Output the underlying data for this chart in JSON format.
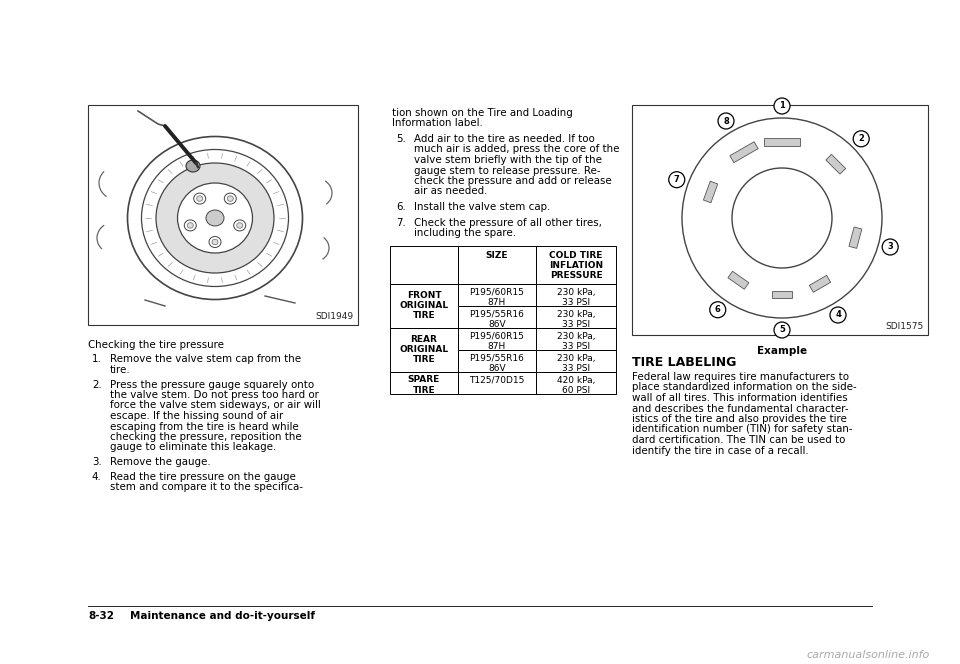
{
  "bg_color": "#ffffff",
  "page_width": 9.6,
  "page_height": 6.64,
  "left_image_label": "SDI1949",
  "right_image_label": "SDI1575",
  "right_image_caption": "Example",
  "left_text_title": "Checking the tire pressure",
  "center_text_top_line1": "tion shown on the Tire and Loading",
  "center_text_top_line2": "Information label.",
  "table_headers": [
    "",
    "SIZE",
    "COLD TIRE\nINFLATION\nPRESSURE"
  ],
  "table_col1": [
    "FRONT\nORIGINAL\nTIRE",
    "",
    "REAR\nORIGINAL\nTIRE",
    "",
    "SPARE\nTIRE"
  ],
  "table_col2": [
    "P195/60R15\n87H",
    "P195/55R16\n86V",
    "P195/60R15\n87H",
    "P195/55R16\n86V",
    "T125/70D15"
  ],
  "table_col3": [
    "230 kPa,\n33 PSI",
    "230 kPa,\n33 PSI",
    "230 kPa,\n33 PSI",
    "230 kPa,\n33 PSI",
    "420 kPa,\n60 PSI"
  ],
  "right_title": "TIRE LABELING",
  "right_para_lines": [
    "Federal law requires tire manufacturers to",
    "place standardized information on the side-",
    "wall of all tires. This information identifies",
    "and describes the fundamental character-",
    "istics of the tire and also provides the tire",
    "identification number (TIN) for safety stan-",
    "dard certification. The TIN can be used to",
    "identify the tire in case of a recall."
  ],
  "footer": "8-32    Maintenance and do-it-yourself",
  "left_col_items": [
    [
      "1.",
      "Remove the valve stem cap from the",
      "tire."
    ],
    [
      "2.",
      "Press the pressure gauge squarely onto",
      "the valve stem. Do not press too hard or",
      "force the valve stem sideways, or air will",
      "escape. If the hissing sound of air",
      "escaping from the tire is heard while",
      "checking the pressure, reposition the",
      "gauge to eliminate this leakage."
    ],
    [
      "3.",
      "Remove the gauge."
    ],
    [
      "4.",
      "Read the tire pressure on the gauge",
      "stem and compare it to the specifica-"
    ]
  ],
  "center_items": [
    [
      "5.",
      "Add air to the tire as needed. If too",
      "much air is added, press the core of the",
      "valve stem briefly with the tip of the",
      "gauge stem to release pressure. Re-",
      "check the pressure and add or release",
      "air as needed."
    ],
    [
      "6.",
      "Install the valve stem cap."
    ],
    [
      "7.",
      "Check the pressure of all other tires,",
      "including the spare."
    ]
  ],
  "watermark": "carmanualsonline.info"
}
